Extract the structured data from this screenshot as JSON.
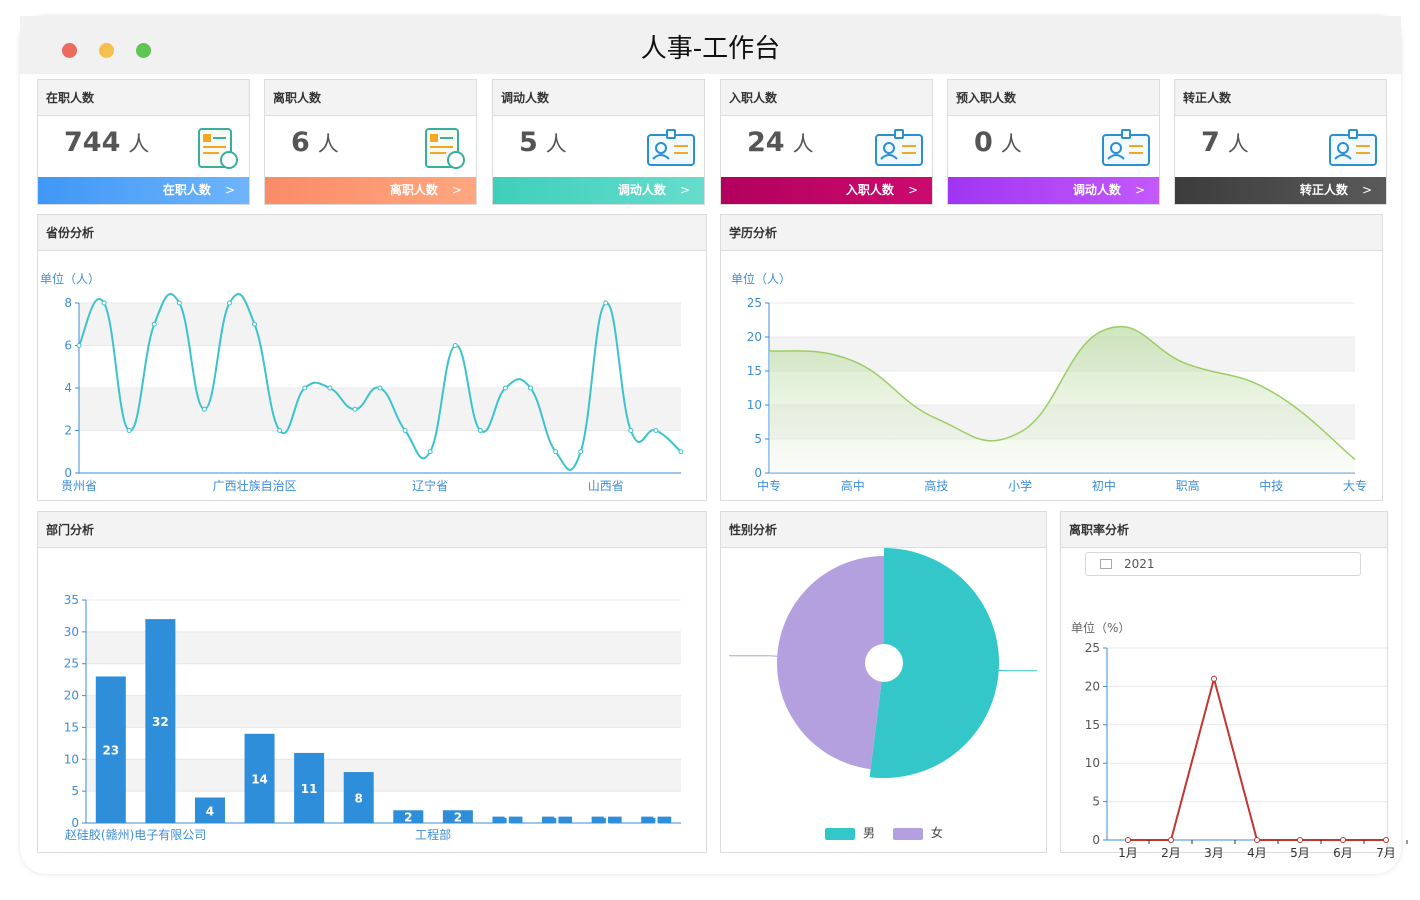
{
  "window": {
    "title": "人事-工作台"
  },
  "colors": {
    "traffic_close": "#ec6a5e",
    "traffic_min": "#f4bf4f",
    "traffic_max": "#61c554"
  },
  "stats": [
    {
      "title": "在职人数",
      "value": "744",
      "unit": "人",
      "link": "在职人数",
      "icon": "certificate-icon",
      "color_from": "#3f97f6",
      "color_to": "#6fb4fb"
    },
    {
      "title": "离职人数",
      "value": "6",
      "unit": "人",
      "link": "离职人数",
      "icon": "certificate-icon",
      "color_from": "#fa8b68",
      "color_to": "#ffa77f"
    },
    {
      "title": "调动人数",
      "value": "5",
      "unit": "人",
      "link": "调动人数",
      "icon": "id-card-icon",
      "color_from": "#3ecfbb",
      "color_to": "#66ddcc"
    },
    {
      "title": "入职人数",
      "value": "24",
      "unit": "人",
      "link": "入职人数",
      "icon": "id-card-icon",
      "color_from": "#b2005d",
      "color_to": "#cc0a6e"
    },
    {
      "title": "预入职人数",
      "value": "0",
      "unit": "人",
      "link": "调动人数",
      "icon": "id-card-icon",
      "color_from": "#a035f2",
      "color_to": "#c359fb"
    },
    {
      "title": "转正人数",
      "value": "7",
      "unit": "人",
      "link": "转正人数",
      "icon": "id-card-icon",
      "color_from": "#3c3c3c",
      "color_to": "#5a5a5a"
    }
  ],
  "panels": {
    "province": "省份分析",
    "education": "学历分析",
    "department": "部门分析",
    "gender": "性别分析",
    "turnover": "离职率分析"
  },
  "turnover_year": "2021",
  "chart_data": [
    {
      "type": "line",
      "title": "省份分析",
      "ylabel": "单位（人）",
      "ylim": [
        0,
        8
      ],
      "yticks": [
        0,
        2,
        4,
        6,
        8
      ],
      "x_tick_labels": [
        "贵州省",
        "广西壮族自治区",
        "辽宁省",
        "山西省"
      ],
      "values": [
        6,
        8,
        2,
        7,
        8,
        3,
        8,
        7,
        2,
        4,
        4,
        3,
        4,
        2,
        1,
        6,
        2,
        4,
        4,
        1,
        1,
        8,
        2,
        2,
        1
      ],
      "smooth": true,
      "color": "#3cc3cc",
      "grid": "horizontal bands"
    },
    {
      "type": "area",
      "title": "学历分析",
      "ylabel": "单位（人）",
      "ylim": [
        0,
        25
      ],
      "yticks": [
        0,
        5,
        10,
        15,
        20,
        25
      ],
      "categories": [
        "中专",
        "高中",
        "高技",
        "小学",
        "初中",
        "职高",
        "中技",
        "大专"
      ],
      "values": [
        18,
        16.5,
        8,
        6,
        21,
        16,
        12,
        2
      ],
      "smooth": true,
      "color": "#9ccc65"
    },
    {
      "type": "bar",
      "title": "部门分析",
      "ylim": [
        0,
        35
      ],
      "yticks": [
        0,
        5,
        10,
        15,
        20,
        25,
        30,
        35
      ],
      "x_tick_labels": [
        "赵硅胶(赣州)电子有限公司",
        "工程部"
      ],
      "values": [
        23,
        32,
        4,
        14,
        11,
        8,
        2,
        2,
        1,
        1,
        1,
        1
      ],
      "color": "#2f8ed9"
    },
    {
      "type": "pie",
      "title": "性别分析",
      "series": [
        {
          "name": "男",
          "value": 52,
          "color": "#33c7c9"
        },
        {
          "name": "女",
          "value": 48,
          "color": "#b5a0df"
        }
      ],
      "legend": "bottom"
    },
    {
      "type": "line",
      "title": "离职率分析",
      "ylabel": "单位（%）",
      "ylim": [
        0,
        25
      ],
      "yticks": [
        0,
        5,
        10,
        15,
        20,
        25
      ],
      "categories": [
        "1月",
        "2月",
        "3月",
        "4月",
        "5月",
        "6月",
        "7月"
      ],
      "values": [
        0,
        0,
        21,
        0,
        0,
        0,
        0
      ],
      "color": "#c23531"
    }
  ]
}
